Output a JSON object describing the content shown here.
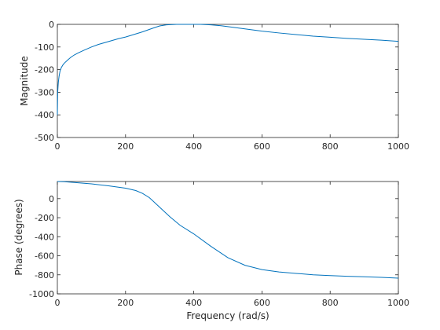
{
  "chart_data": [
    {
      "type": "line",
      "title": "",
      "xlabel": "",
      "ylabel": "Magnitude",
      "xlim": [
        0,
        1000
      ],
      "ylim": [
        -500,
        0
      ],
      "xticks": [
        0,
        200,
        400,
        600,
        800,
        1000
      ],
      "yticks": [
        -500,
        -400,
        -300,
        -200,
        -100,
        0
      ],
      "grid": false,
      "line_color": "#0072BD",
      "series": [
        {
          "x": [
            0,
            1,
            2,
            3,
            5,
            8,
            12,
            16,
            20,
            30,
            40,
            50,
            60,
            80,
            100,
            120,
            150,
            180,
            200,
            220,
            250,
            280,
            300,
            320,
            350,
            380,
            400,
            420,
            450,
            480,
            500,
            550,
            600,
            650,
            700,
            750,
            800,
            850,
            900,
            950,
            1000
          ],
          "y": [
            -400,
            -300,
            -275,
            -255,
            -230,
            -205,
            -190,
            -180,
            -172,
            -158,
            -145,
            -135,
            -127,
            -113,
            -100,
            -89,
            -76,
            -63,
            -56,
            -47,
            -33,
            -17,
            -7,
            -2,
            0,
            0,
            0,
            0,
            -2,
            -6,
            -10,
            -20,
            -30,
            -38,
            -45,
            -52,
            -57,
            -62,
            -66,
            -70,
            -75
          ]
        }
      ]
    },
    {
      "type": "line",
      "title": "",
      "xlabel": "Frequency (rad/s)",
      "ylabel": "Phase (degrees)",
      "xlim": [
        0,
        1000
      ],
      "ylim": [
        -1000,
        180
      ],
      "xticks": [
        0,
        200,
        400,
        600,
        800,
        1000
      ],
      "yticks": [
        -1000,
        -800,
        -600,
        -400,
        -200,
        0
      ],
      "grid": false,
      "line_color": "#0072BD",
      "series": [
        {
          "x": [
            0,
            20,
            50,
            100,
            150,
            200,
            230,
            250,
            270,
            300,
            330,
            360,
            400,
            450,
            500,
            550,
            600,
            650,
            700,
            750,
            800,
            850,
            900,
            950,
            1000
          ],
          "y": [
            180,
            178,
            170,
            155,
            135,
            110,
            85,
            55,
            10,
            -90,
            -190,
            -280,
            -370,
            -500,
            -620,
            -700,
            -745,
            -770,
            -785,
            -800,
            -808,
            -815,
            -820,
            -827,
            -835
          ]
        }
      ]
    }
  ]
}
